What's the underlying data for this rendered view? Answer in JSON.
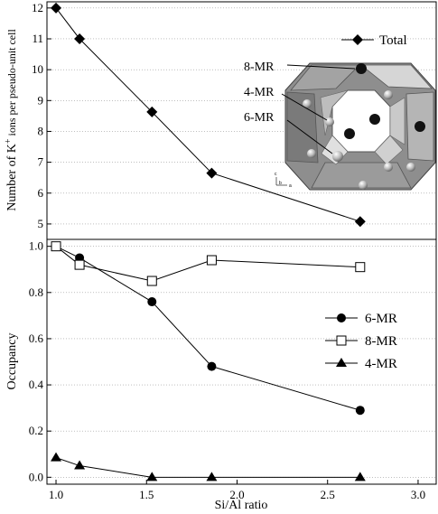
{
  "chart_data": [
    {
      "type": "line",
      "panel": "top",
      "ylabel": "Number of K",
      "ylabel_superscript": "+",
      "ylabel_suffix": " ions per pseudo-unit cell",
      "ylim": [
        4.5,
        12.2
      ],
      "yticks": [
        5,
        6,
        7,
        8,
        9,
        10,
        11,
        12
      ],
      "xlim": [
        0.95,
        3.1
      ],
      "grid": "horizontal dotted",
      "legend_position": "top-right",
      "series": [
        {
          "name": "Total",
          "marker": "filled-diamond",
          "x": [
            1.0,
            1.13,
            1.53,
            1.86,
            2.68
          ],
          "y": [
            12.0,
            11.0,
            8.63,
            6.65,
            5.08
          ]
        }
      ],
      "annotations": [
        "8-MR",
        "4-MR",
        "6-MR"
      ],
      "inset_axis_labels": [
        "c",
        "b",
        "a"
      ]
    },
    {
      "type": "line",
      "panel": "bottom",
      "xlabel": "Si/Al ratio",
      "ylabel": "Occupancy",
      "xlim": [
        0.95,
        3.1
      ],
      "ylim": [
        -0.03,
        1.03
      ],
      "xticks": [
        "1.0",
        "1.5",
        "2.0",
        "2.5",
        "3.0"
      ],
      "xtick_values": [
        1.0,
        1.5,
        2.0,
        2.5,
        3.0
      ],
      "yticks": [
        "0.0",
        "0.2",
        "0.4",
        "0.6",
        "0.8",
        "1.0"
      ],
      "ytick_values": [
        0.0,
        0.2,
        0.4,
        0.6,
        0.8,
        1.0
      ],
      "grid": "horizontal dotted",
      "legend_position": "right",
      "series": [
        {
          "name": "6-MR",
          "marker": "filled-circle",
          "x": [
            1.0,
            1.13,
            1.53,
            1.86,
            2.68
          ],
          "y": [
            1.0,
            0.95,
            0.76,
            0.48,
            0.29
          ]
        },
        {
          "name": "8-MR",
          "marker": "open-square",
          "x": [
            1.0,
            1.13,
            1.53,
            1.86,
            2.68
          ],
          "y": [
            1.0,
            0.92,
            0.85,
            0.94,
            0.91
          ]
        },
        {
          "name": "4-MR",
          "marker": "filled-triangle",
          "x": [
            1.0,
            1.13,
            1.53,
            1.86,
            2.68
          ],
          "y": [
            0.085,
            0.05,
            0.0,
            0.0,
            0.0
          ]
        }
      ]
    }
  ]
}
